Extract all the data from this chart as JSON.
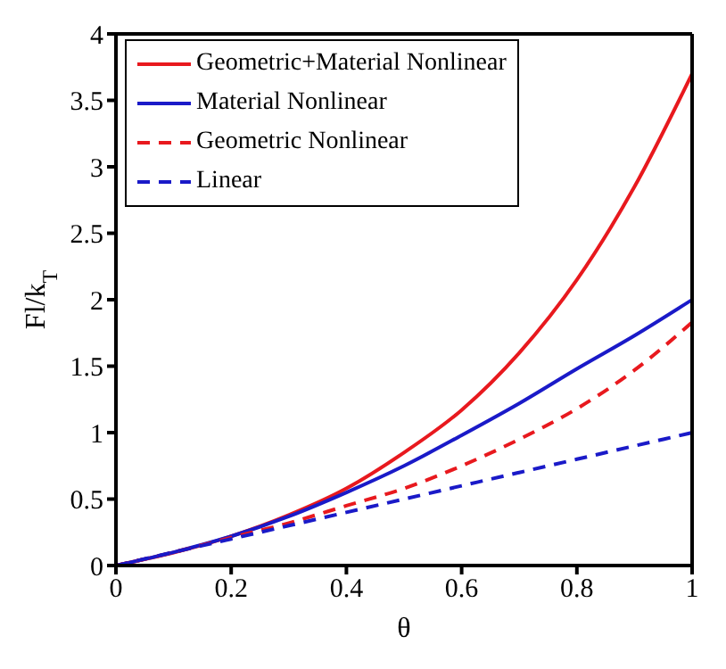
{
  "chart_data": {
    "type": "line",
    "xlabel": "θ",
    "ylabel": "Fl/k$_{T}$",
    "x": [
      0,
      0.1,
      0.2,
      0.3,
      0.4,
      0.5,
      0.6,
      0.7,
      0.8,
      0.9,
      1
    ],
    "series": [
      {
        "name": "Geometric+Material Nonlinear",
        "color": "#e8191e",
        "line_style": "solid",
        "values": [
          0,
          null,
          0.22,
          0.38,
          0.58,
          0.85,
          1.17,
          1.6,
          2.15,
          2.85,
          3.7
        ]
      },
      {
        "name": "Material Nonlinear",
        "color": "#1a1ac8",
        "line_style": "solid",
        "values": [
          0,
          0.1,
          0.22,
          0.37,
          0.55,
          0.75,
          0.98,
          1.22,
          1.48,
          1.73,
          2.0
        ]
      },
      {
        "name": "Geometric Nonlinear",
        "color": "#e8191e",
        "line_style": "dashed",
        "values": [
          0,
          0.1,
          0.21,
          0.32,
          0.45,
          0.58,
          0.75,
          0.95,
          1.18,
          1.47,
          1.83
        ]
      },
      {
        "name": "Linear",
        "color": "#1a1ac8",
        "line_style": "dashed",
        "values": [
          0,
          0.1,
          0.2,
          0.3,
          0.4,
          0.5,
          0.6,
          0.7,
          0.8,
          0.9,
          1.0
        ]
      }
    ],
    "xlim": [
      0,
      1
    ],
    "xticks": [
      0,
      0.2,
      0.4,
      0.6,
      0.8,
      1
    ],
    "ylim": [
      0,
      4
    ],
    "yticks": [
      0,
      0.5,
      1,
      1.5,
      2,
      2.5,
      3,
      3.5,
      4
    ],
    "grid": false,
    "legend": "top left",
    "marker": "none"
  }
}
